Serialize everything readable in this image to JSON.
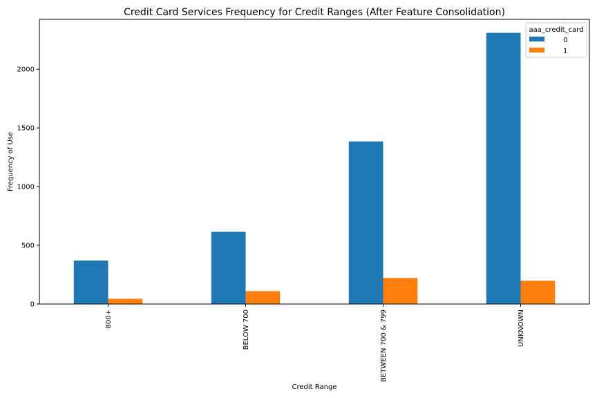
{
  "chart_data": {
    "type": "bar",
    "title": "Credit Card Services Frequency for Credit Ranges (After Feature Consolidation)",
    "xlabel": "Credit Range",
    "ylabel": "Frequency of Use",
    "categories": [
      "800+",
      "BELOW 700",
      "BETWEEN 700 & 799",
      "UNKNOWN"
    ],
    "series": [
      {
        "name": "0",
        "color": "#1f77b4",
        "values": [
          370,
          615,
          1385,
          2310
        ]
      },
      {
        "name": "1",
        "color": "#ff7f0e",
        "values": [
          45,
          110,
          222,
          198
        ]
      }
    ],
    "ylim": [
      0,
      2425
    ],
    "yticks": [
      0,
      500,
      1000,
      1500,
      2000
    ],
    "grid": false,
    "legend": {
      "title": "aaa_credit_card",
      "placement": "top-right"
    }
  }
}
